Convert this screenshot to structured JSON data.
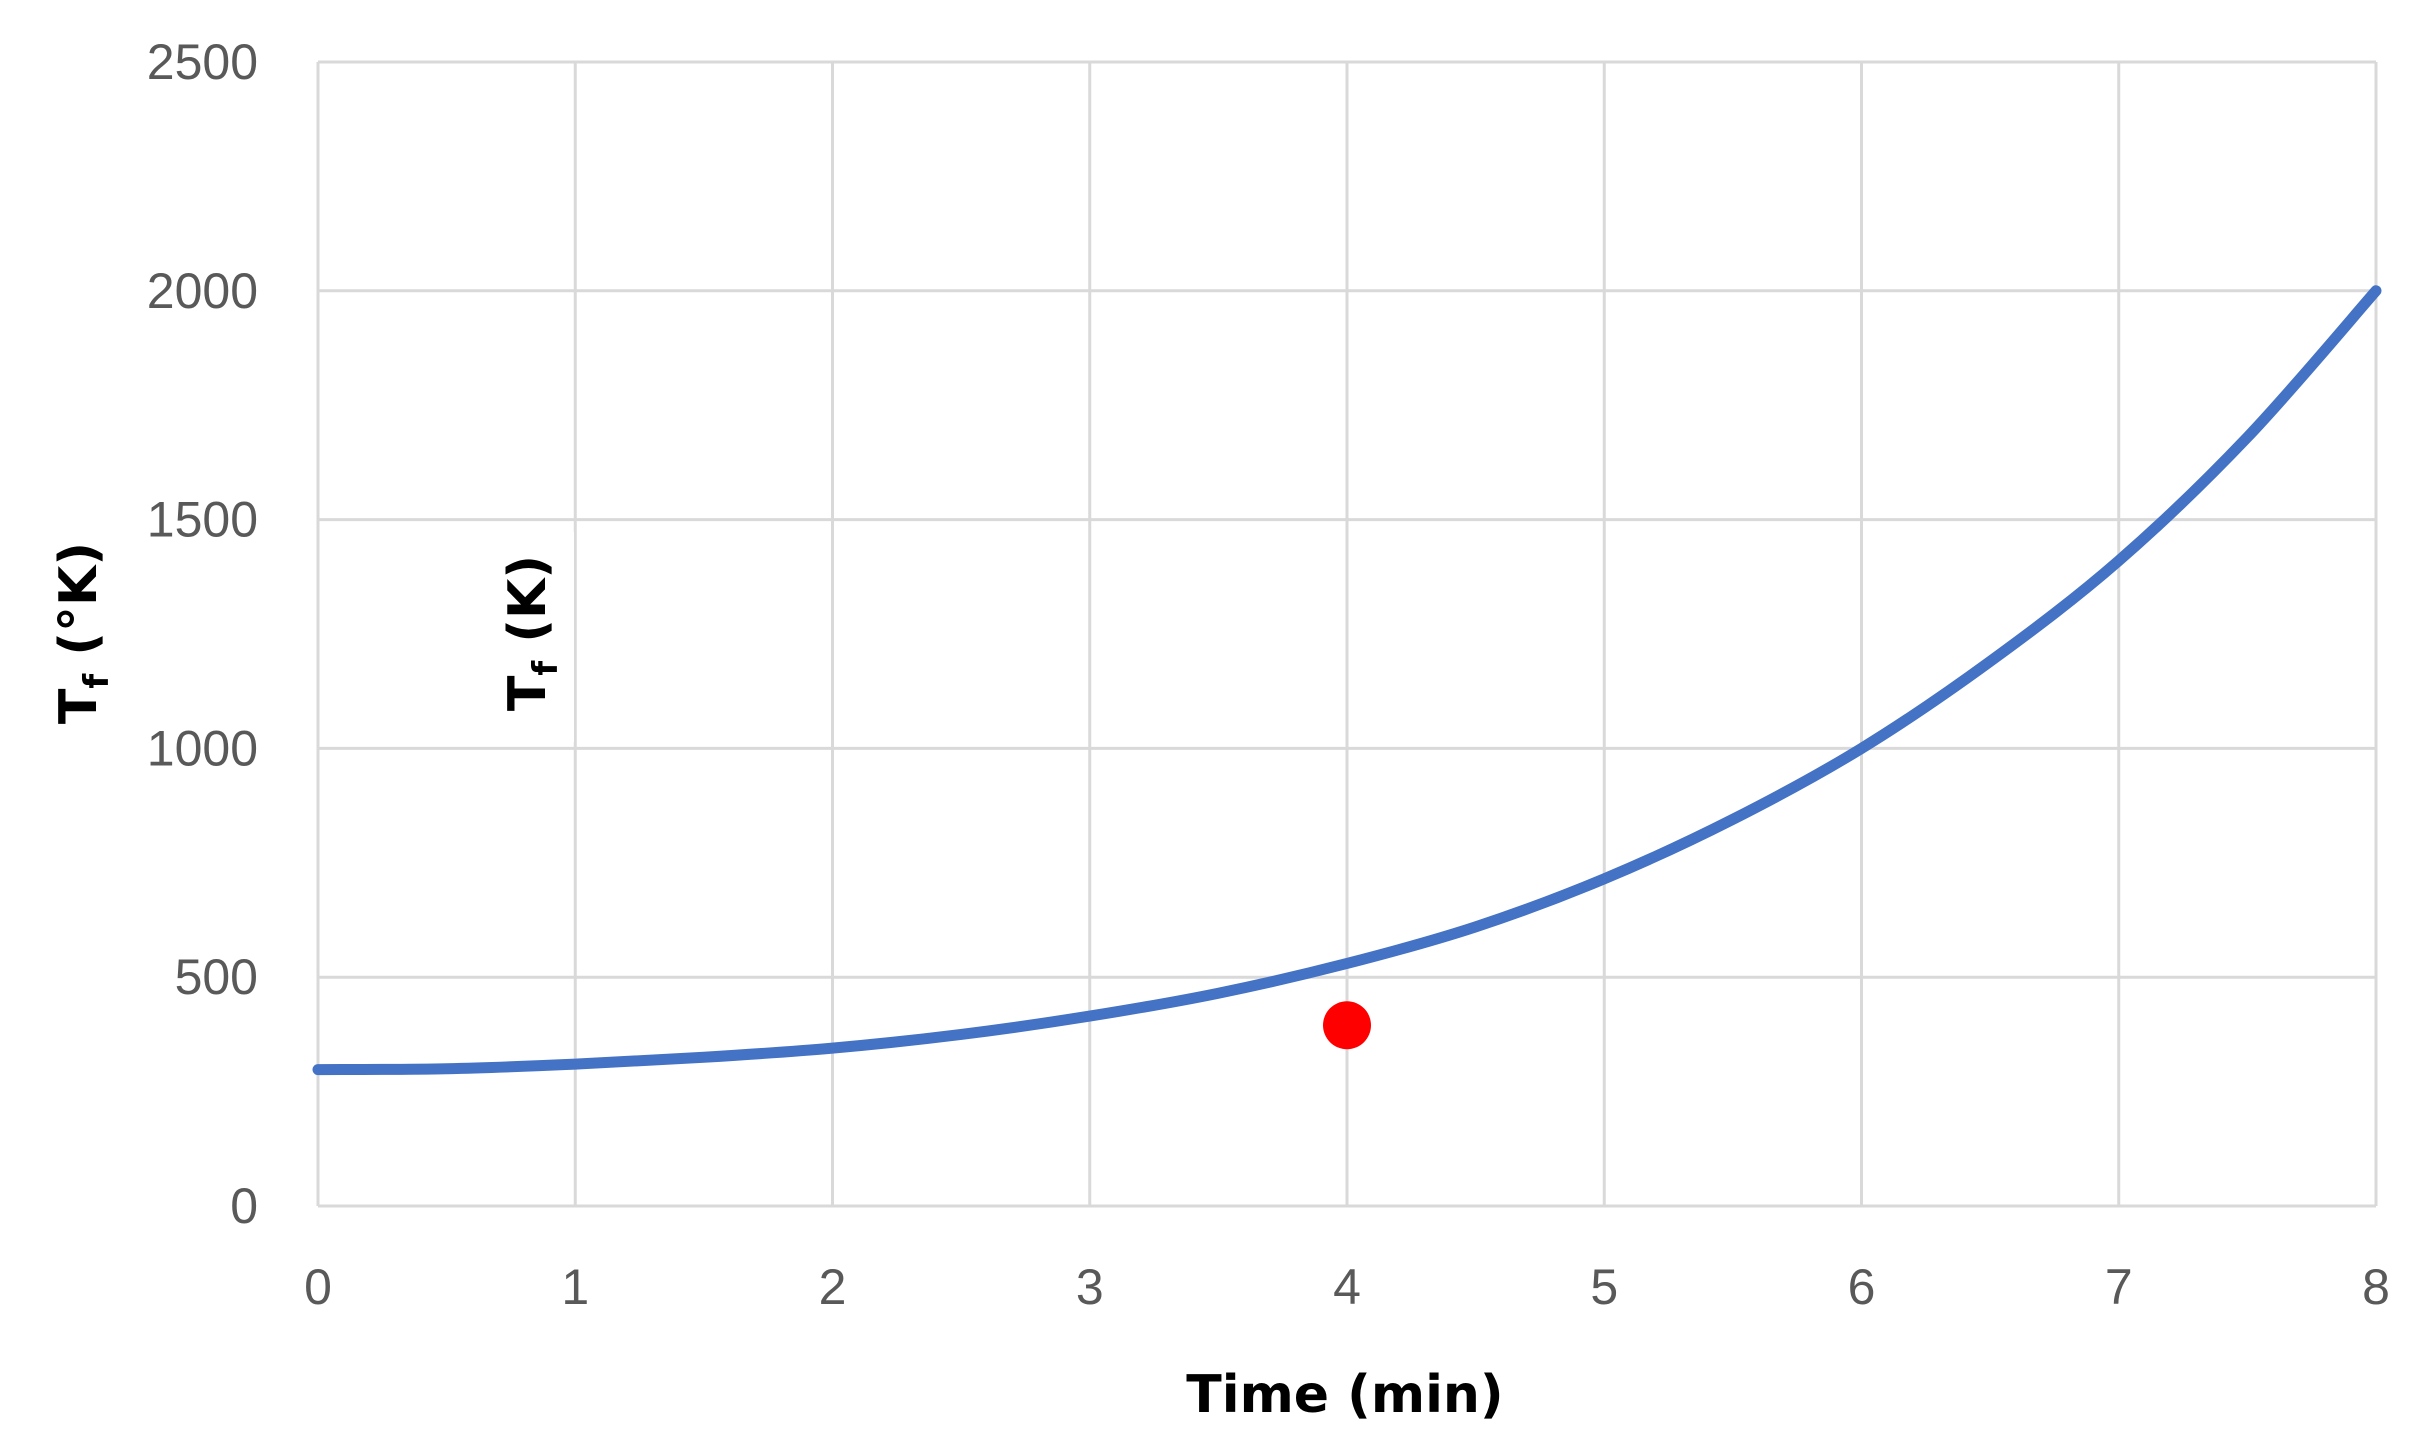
{
  "chart_data": {
    "type": "line",
    "xlabel": "Time (min)",
    "ylabel": {
      "main": "T",
      "sub": "f",
      "rest": " (°K)"
    },
    "annotation": {
      "main": "T",
      "sub": "f",
      "rest": " (K)"
    },
    "xlim": [
      0,
      8
    ],
    "ylim": [
      0,
      2500
    ],
    "x_ticks": [
      "0",
      "1",
      "2",
      "3",
      "4",
      "5",
      "6",
      "7",
      "8"
    ],
    "y_ticks": [
      "0",
      "500",
      "1000",
      "1500",
      "2000",
      "2500"
    ],
    "grid": true,
    "series": [
      {
        "color": "#4472C4",
        "x": [
          0,
          0.5,
          1,
          1.5,
          2,
          2.5,
          3,
          3.5,
          4,
          4.5,
          5,
          5.5,
          6,
          6.5,
          7,
          7.5,
          8
        ],
        "y": [
          298,
          300,
          310,
          325,
          345,
          375,
          415,
          465,
          530,
          610,
          715,
          845,
          1000,
          1190,
          1410,
          1680,
          2000
        ]
      }
    ],
    "points": [
      {
        "x": 4,
        "y": 395,
        "color": "#FF0000"
      }
    ]
  }
}
